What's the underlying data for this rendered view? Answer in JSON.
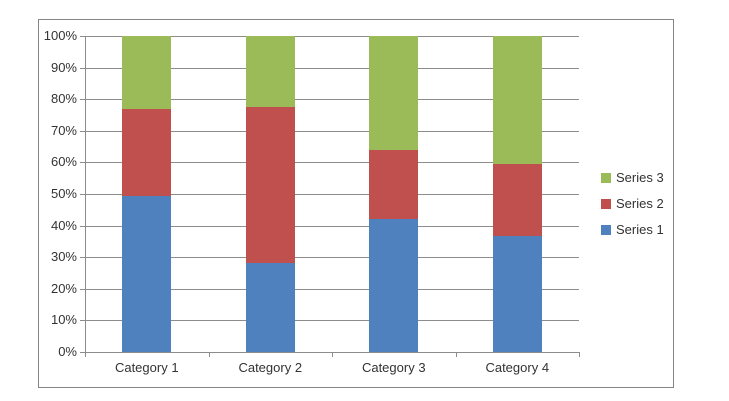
{
  "chart_data": {
    "type": "bar",
    "variant": "100%-stacked-column",
    "title": "",
    "xlabel": "",
    "ylabel": "",
    "categories": [
      "Category 1",
      "Category 2",
      "Category 3",
      "Category 4"
    ],
    "series": [
      {
        "name": "Series 1",
        "color": "#4E81BD",
        "values": [
          4.3,
          2.5,
          3.5,
          4.5
        ]
      },
      {
        "name": "Series 2",
        "color": "#C0504D",
        "values": [
          2.4,
          4.4,
          1.8,
          2.8
        ]
      },
      {
        "name": "Series 3",
        "color": "#9BBB59",
        "values": [
          2.0,
          2.0,
          3.0,
          5.0
        ]
      }
    ],
    "percent_composition": {
      "Category 1": [
        49.4,
        27.6,
        23.0
      ],
      "Category 2": [
        28.1,
        49.4,
        22.5
      ],
      "Category 3": [
        42.2,
        21.7,
        36.1
      ],
      "Category 4": [
        36.6,
        22.8,
        40.7
      ]
    },
    "y_axis": {
      "min": 0,
      "max": 100,
      "unit": "%",
      "tick_labels": [
        "0%",
        "10%",
        "20%",
        "30%",
        "40%",
        "50%",
        "60%",
        "70%",
        "80%",
        "90%",
        "100%"
      ]
    },
    "grid": true,
    "legend": {
      "position": "right",
      "entries_top_to_bottom": [
        "Series 3",
        "Series 2",
        "Series 1"
      ]
    }
  },
  "styles": {
    "gridline_color": "#8C8C8C",
    "axis_color": "#8C8C8C",
    "frame_border_color": "#868686",
    "text_color": "#333333",
    "background_color": "#FFFFFF"
  }
}
